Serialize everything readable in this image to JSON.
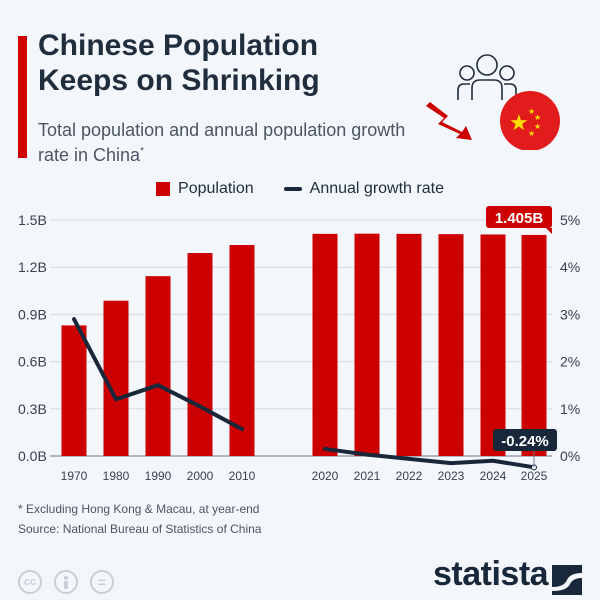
{
  "header": {
    "title_line1": "Chinese Population",
    "title_line2": "Keeps on Shrinking",
    "subtitle": "Total population and annual population growth rate in China",
    "subtitle_mark": "*"
  },
  "icons": [
    "people-group-icon",
    "downward-trend-arrow-icon",
    "china-flag-icon"
  ],
  "colors": {
    "population": "#cc0000",
    "growth": "#18273a",
    "accent": "#d00000"
  },
  "chart_data": {
    "type": "bar+line",
    "categories": [
      "1970",
      "1980",
      "1990",
      "2000",
      "2010",
      "2020",
      "2021",
      "2022",
      "2023",
      "2024",
      "2025"
    ],
    "series": [
      {
        "name": "Population",
        "type": "bar",
        "axis": "left",
        "values": [
          0.83,
          0.987,
          1.143,
          1.29,
          1.341,
          1.412,
          1.413,
          1.412,
          1.41,
          1.408,
          1.405
        ]
      },
      {
        "name": "Annual growth rate",
        "type": "line",
        "axis": "right",
        "values": [
          2.9,
          1.2,
          1.5,
          1.05,
          0.57,
          0.15,
          0.03,
          -0.06,
          -0.15,
          -0.1,
          -0.24
        ]
      }
    ],
    "left_axis": {
      "ticks": [
        "0.0B",
        "0.3B",
        "0.6B",
        "0.9B",
        "1.2B",
        "1.5B"
      ],
      "ylim": [
        0,
        1.5
      ]
    },
    "right_axis": {
      "ticks": [
        "0%",
        "1%",
        "2%",
        "3%",
        "4%",
        "5%"
      ],
      "ylim": [
        0,
        5
      ]
    },
    "annotations": {
      "population_last": "1.405B",
      "growth_last": "-0.24%"
    },
    "grid": true,
    "legend": "top-center"
  },
  "footer": {
    "note": "* Excluding Hong Kong & Macau, at year-end",
    "source": "Source: National Bureau of Statistics of China",
    "license_icons": [
      "cc",
      "by",
      "nd"
    ],
    "cc_label": "cc",
    "nd_label": "=",
    "brand": "statista"
  }
}
